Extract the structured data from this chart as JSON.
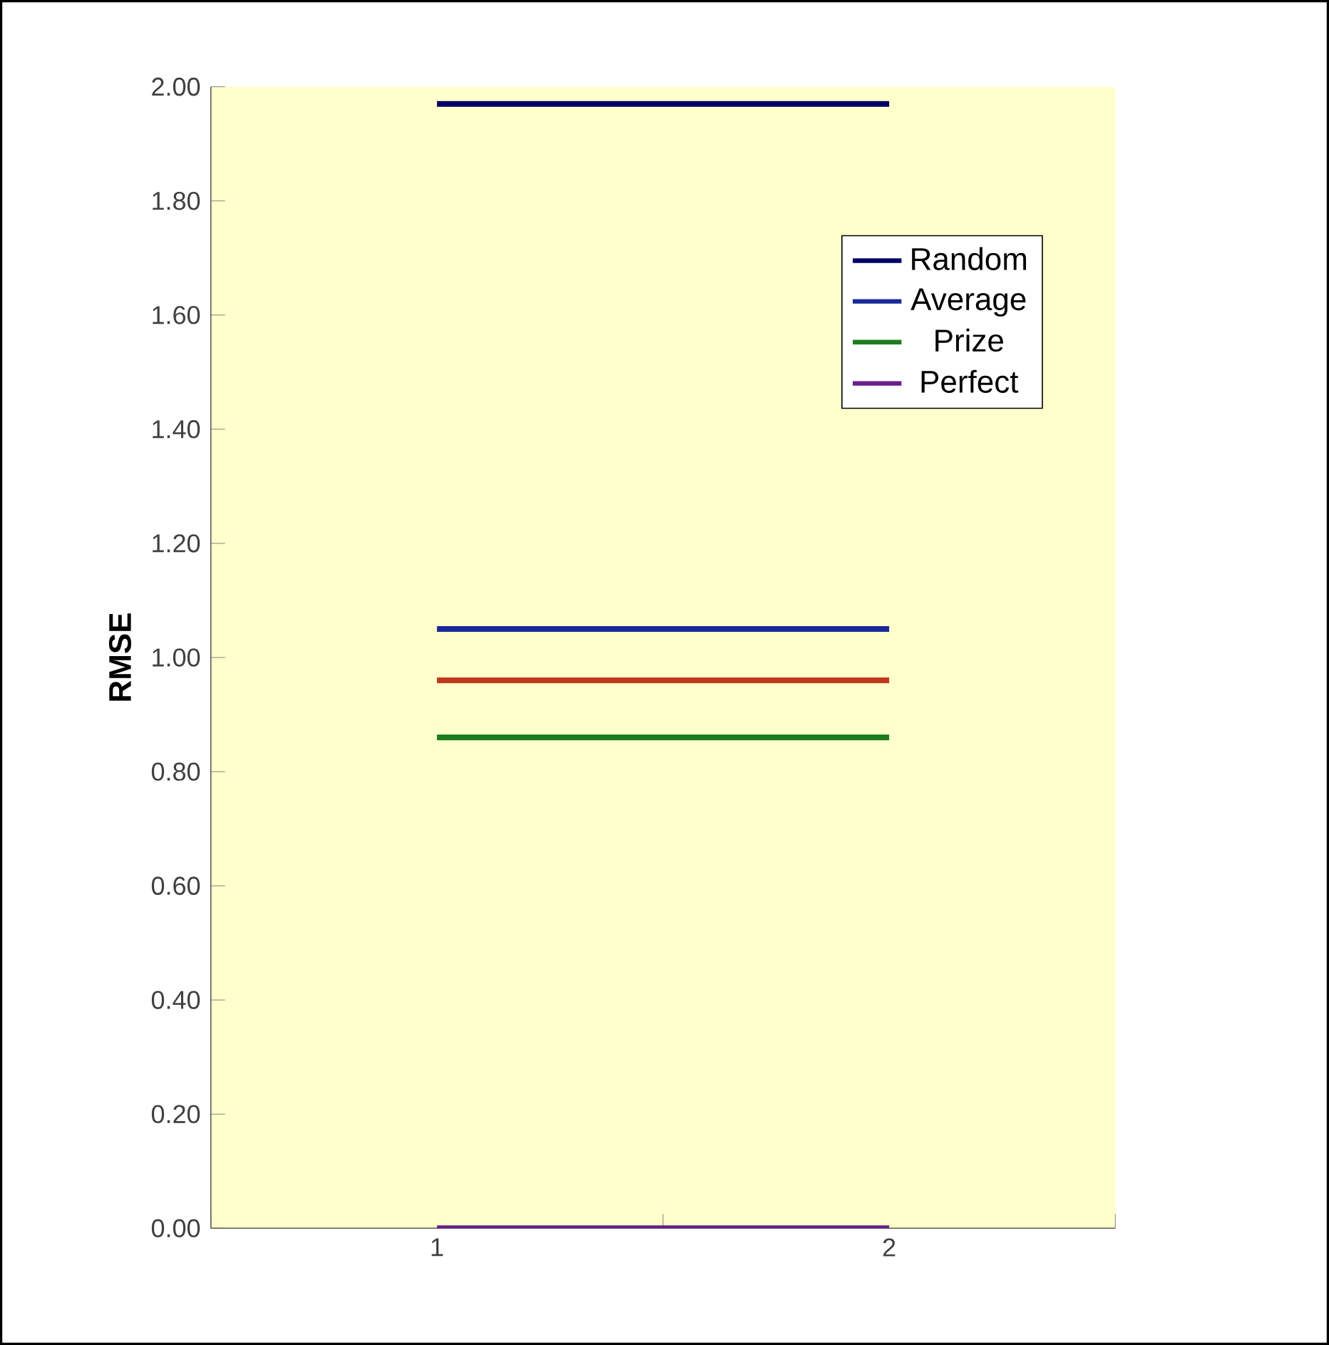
{
  "chart_data": {
    "type": "line",
    "ylabel": "RMSE",
    "categories": [
      "1",
      "2"
    ],
    "series": [
      {
        "name": "Random",
        "color": "#000066",
        "values": [
          1.97,
          1.97
        ]
      },
      {
        "name": "Average",
        "color": "#1a2a9a",
        "values": [
          1.05,
          1.05
        ]
      },
      {
        "color": "#c0391f",
        "values": [
          0.96,
          0.96
        ]
      },
      {
        "name": "Prize",
        "color": "#1e7d1e",
        "values": [
          0.86,
          0.86
        ]
      },
      {
        "name": "Perfect",
        "color": "#6a1f8a",
        "values": [
          0.0,
          0.0
        ]
      }
    ],
    "ylim": [
      0,
      2
    ],
    "yticks": [
      {
        "value": 0,
        "label": "0.00"
      },
      {
        "value": 0.2,
        "label": "0.20"
      },
      {
        "value": 0.4,
        "label": "0.40"
      },
      {
        "value": 0.6,
        "label": "0.60"
      },
      {
        "value": 0.8,
        "label": "0.80"
      },
      {
        "value": 1,
        "label": "1.00"
      },
      {
        "value": 1.2,
        "label": "1.20"
      },
      {
        "value": 1.4,
        "label": "1.40"
      },
      {
        "value": 1.6,
        "label": "1.60"
      },
      {
        "value": 1.8,
        "label": "1.80"
      },
      {
        "value": 2,
        "label": "2.00"
      }
    ],
    "legend": "top right",
    "marker": "none",
    "line_style": "solid",
    "grid": false
  }
}
